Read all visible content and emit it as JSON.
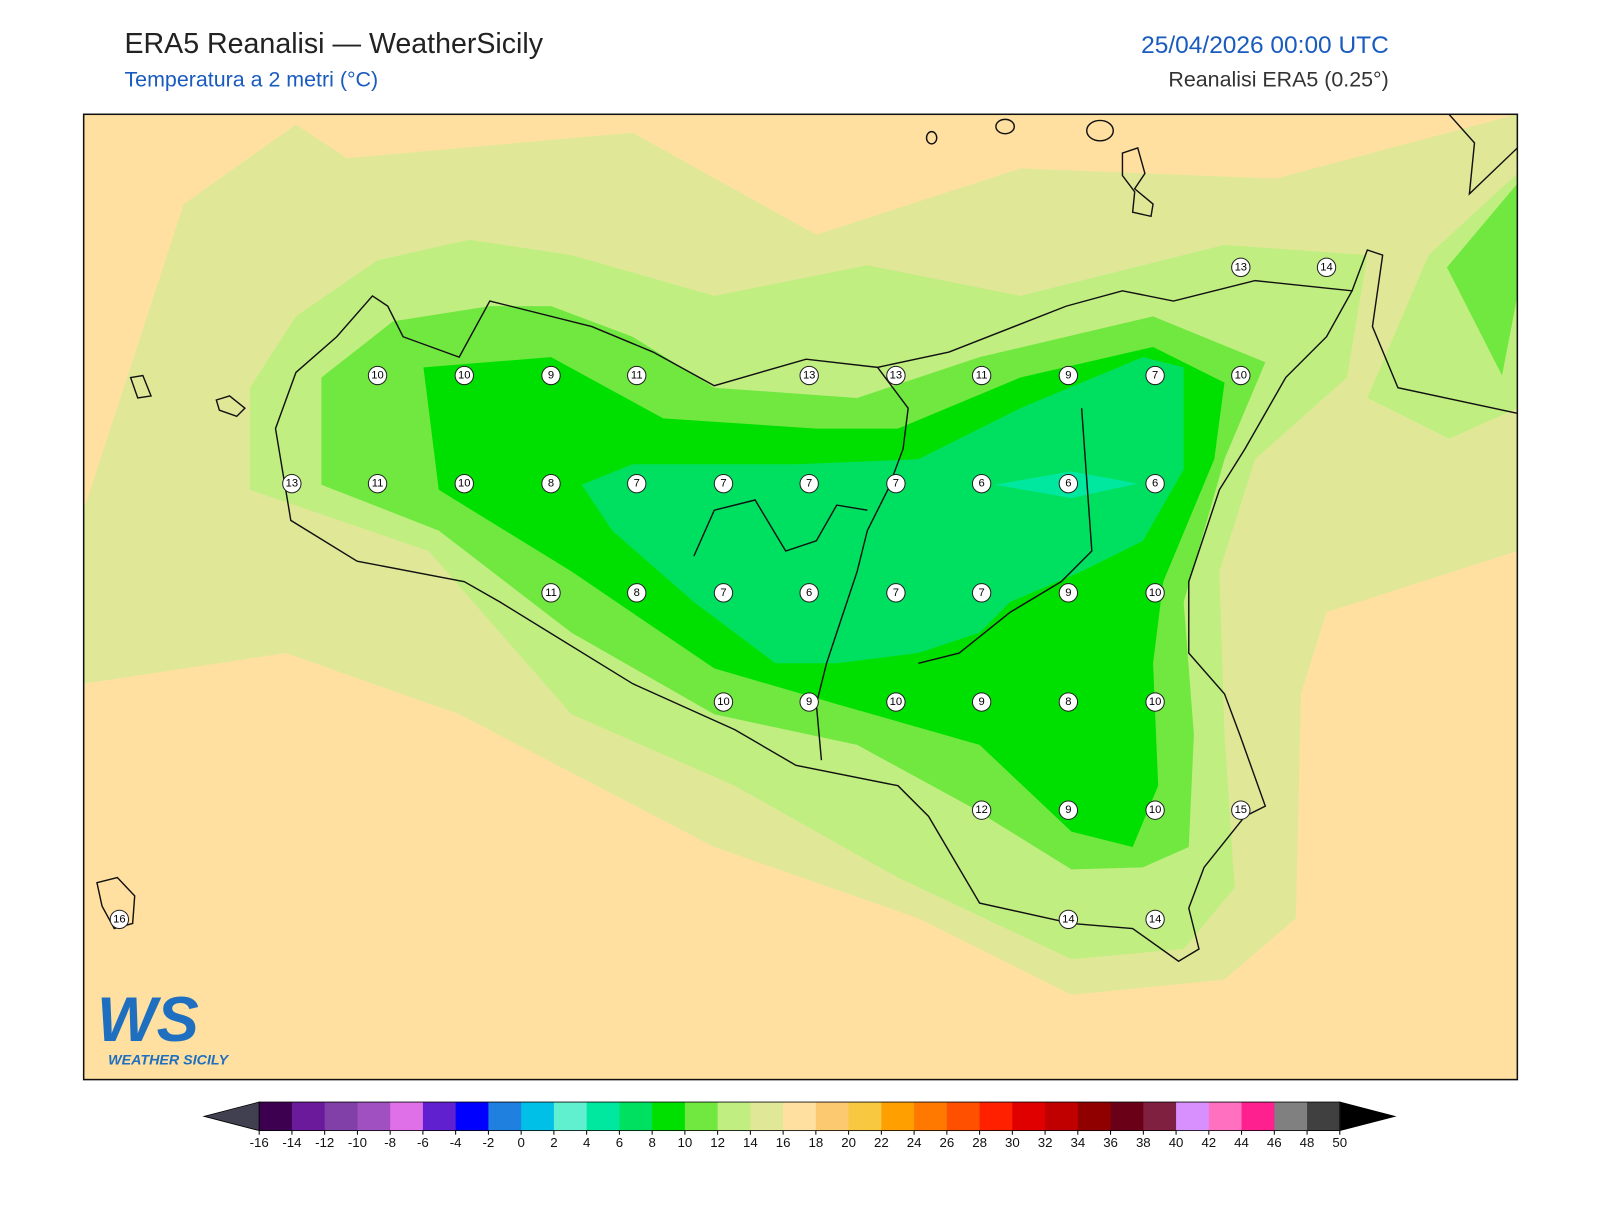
{
  "header": {
    "title": "ERA5 Reanalisi — WeatherSicily",
    "subtitle": "Temperatura a 2 metri (°C)",
    "date": "25/04/2026 00:00 UTC",
    "source": "Reanalisi ERA5 (0.25°)"
  },
  "stations": [
    10,
    10,
    9,
    11,
    13,
    13,
    11,
    9,
    7,
    10,
    13,
    14,
    13,
    11,
    10,
    8,
    7,
    7,
    7,
    7,
    6,
    6,
    6,
    11,
    8,
    7,
    6,
    7,
    7,
    9,
    10,
    10,
    9,
    10,
    9,
    8,
    10,
    12,
    9,
    10,
    15,
    16,
    14,
    14
  ],
  "logo": {
    "mark": "WS",
    "name": "WEATHER SICILY"
  },
  "colorbar": {
    "ticks": [
      -16,
      -14,
      -12,
      -10,
      -8,
      -6,
      -4,
      -2,
      0,
      2,
      4,
      6,
      8,
      10,
      12,
      14,
      16,
      18,
      20,
      22,
      24,
      26,
      28,
      30,
      32,
      34,
      36,
      38,
      40,
      42,
      44,
      46,
      48,
      50
    ],
    "colors": [
      "#3d0050",
      "#6a1a9a",
      "#8040a8",
      "#a050c0",
      "#e070e8",
      "#6020d0",
      "#0000ff",
      "#2080e0",
      "#00c0e8",
      "#60f0d0",
      "#00e8a0",
      "#00e060",
      "#00e000",
      "#70e840",
      "#c0ee80",
      "#e0e898",
      "#ffe0a0",
      "#fcc870",
      "#f8c840",
      "#ffa000",
      "#ff7800",
      "#ff5000",
      "#ff2000",
      "#e00000",
      "#c00000",
      "#900000",
      "#6a0018",
      "#802040",
      "#d890ff",
      "#ff70c0",
      "#ff2090",
      "#808080",
      "#404040"
    ],
    "under": "#404050",
    "over": "#000000"
  }
}
